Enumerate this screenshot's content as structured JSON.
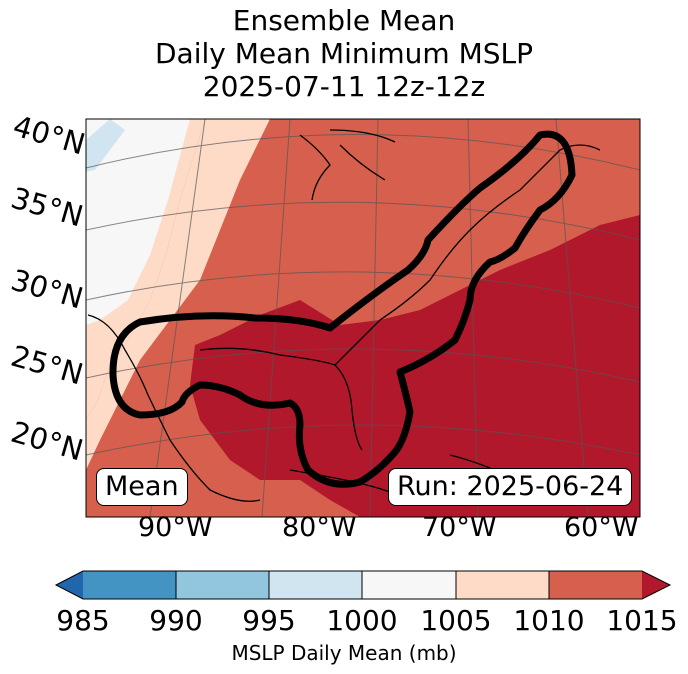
{
  "title": {
    "line1": "Ensemble Mean",
    "line2": "Daily Mean Minimum MSLP",
    "line3": "2025-07-11 12z-12z"
  },
  "map": {
    "lat_labels": [
      "40°N",
      "35°N",
      "30°N",
      "25°N",
      "20°N"
    ],
    "lon_labels": [
      "90°W",
      "80°W",
      "70°W",
      "60°W"
    ],
    "mean_label": "Mean",
    "run_label": "Run: 2025-06-24"
  },
  "colorbar": {
    "label": "MSLP Daily Mean (mb)",
    "ticks": [
      "985",
      "990",
      "995",
      "1000",
      "1005",
      "1010",
      "1015"
    ],
    "colors": [
      "#2166ac",
      "#4393c3",
      "#92c5de",
      "#d1e5f0",
      "#f7f7f7",
      "#fddbc7",
      "#d6604d",
      "#b2182b"
    ]
  }
}
